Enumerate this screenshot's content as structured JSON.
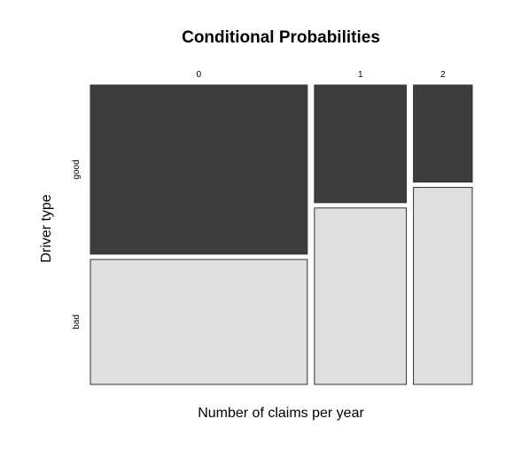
{
  "chart_data": {
    "type": "mosaic",
    "title": "Conditional Probabilities",
    "xlabel": "Number of claims per year",
    "ylabel": "Driver type",
    "categories": [
      "0",
      "1",
      "2"
    ],
    "category_proportions": [
      0.59,
      0.25,
      0.16
    ],
    "series": [
      {
        "name": "good",
        "color": "#3d3d3d",
        "values": [
          0.575,
          0.4,
          0.33
        ]
      },
      {
        "name": "bad",
        "color": "#dfdfdf",
        "values": [
          0.425,
          0.6,
          0.67
        ]
      }
    ]
  }
}
